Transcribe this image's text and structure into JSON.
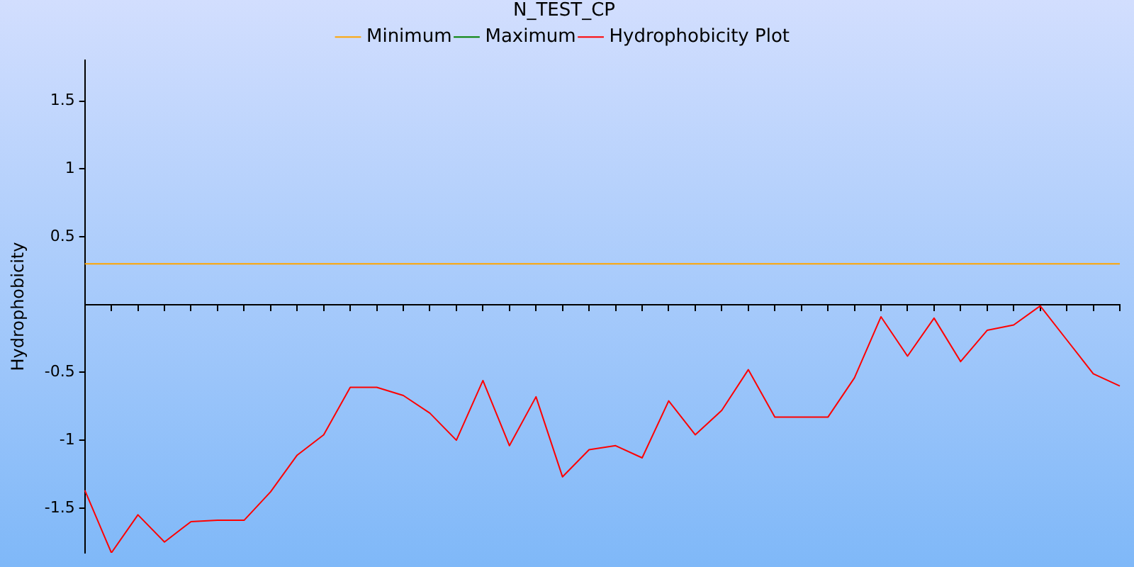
{
  "chart_data": {
    "type": "line",
    "title": "N_TEST_CP",
    "ylabel": "Hydrophobicity",
    "categories": [
      null,
      null,
      null,
      null,
      null,
      null,
      null,
      null,
      null,
      null,
      null,
      null,
      null,
      null,
      null,
      null,
      null,
      null,
      null,
      null,
      null,
      null,
      null,
      null,
      null,
      null,
      null,
      null,
      null,
      null,
      null,
      null,
      null,
      null,
      null,
      null,
      null,
      null,
      null,
      null
    ],
    "series": [
      {
        "name": "Minimum",
        "color": "#ffa500",
        "values": [
          0.3,
          0.3,
          0.3,
          0.3,
          0.3,
          0.3,
          0.3,
          0.3,
          0.3,
          0.3,
          0.3,
          0.3,
          0.3,
          0.3,
          0.3,
          0.3,
          0.3,
          0.3,
          0.3,
          0.3,
          0.3,
          0.3,
          0.3,
          0.3,
          0.3,
          0.3,
          0.3,
          0.3,
          0.3,
          0.3,
          0.3,
          0.3,
          0.3,
          0.3,
          0.3,
          0.3,
          0.3,
          0.3,
          0.3,
          0.3
        ]
      },
      {
        "name": "Maximum",
        "color": "#008000",
        "values": [
          null,
          null,
          null,
          null,
          null,
          null,
          null,
          null,
          null,
          null,
          null,
          null,
          null,
          null,
          null,
          null,
          null,
          null,
          null,
          null,
          null,
          null,
          null,
          null,
          null,
          null,
          null,
          null,
          null,
          null,
          null,
          null,
          null,
          null,
          null,
          null,
          null,
          null,
          null,
          null
        ]
      },
      {
        "name": "Hydrophobicity Plot",
        "color": "#ff0000",
        "values": [
          -1.37,
          -1.83,
          -1.55,
          -1.75,
          -1.6,
          -1.59,
          -1.59,
          -1.38,
          -1.11,
          -0.96,
          -0.61,
          -0.61,
          -0.67,
          -0.8,
          -1.0,
          -0.56,
          -1.04,
          -0.68,
          -1.27,
          -1.07,
          -1.04,
          -1.13,
          -0.71,
          -0.96,
          -0.78,
          -0.48,
          -0.83,
          -0.83,
          -0.83,
          -0.54,
          -0.09,
          -0.38,
          -0.1,
          -0.42,
          -0.19,
          -0.15,
          -0.01,
          -0.26,
          -0.51,
          -0.6
        ]
      }
    ],
    "ylim": [
      -1.83,
      1.8
    ],
    "yticks": [
      -1.5,
      -1,
      -0.5,
      0.5,
      1,
      1.5
    ],
    "legend": "top",
    "tick_labels": "y"
  }
}
